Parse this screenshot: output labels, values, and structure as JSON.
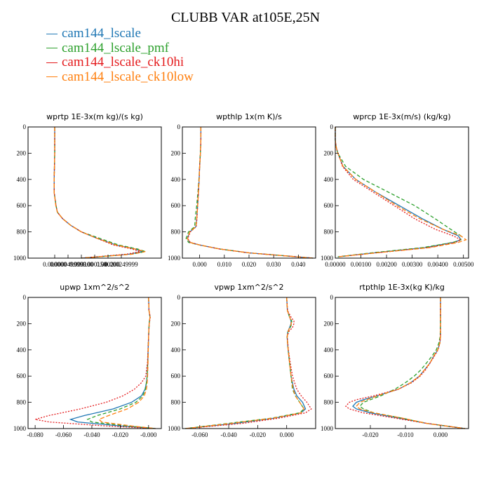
{
  "title": "CLUBB VAR at105E,25N",
  "series_style": [
    {
      "name": "cam144_lscale",
      "color": "#1f77b4",
      "dash": ""
    },
    {
      "name": "cam144_lscale_pmf",
      "color": "#2ca02c",
      "dash": "5,3"
    },
    {
      "name": "cam144_lscale_ck10hi",
      "color": "#e41a1c",
      "dash": "2,2"
    },
    {
      "name": "cam144_lscale_ck10low",
      "color": "#ff7f0e",
      "dash": "6,3"
    }
  ],
  "chart_data": [
    {
      "type": "line",
      "title": "wprtp  1E-3x(m kg)/(s kg)",
      "xlim": [
        -1e-07,
        4e-07
      ],
      "ylim": [
        1000,
        0
      ],
      "yticks": [
        0,
        200,
        400,
        600,
        800,
        1000
      ],
      "xticks": [
        {
          "v": 0.0,
          "label": "0.000000"
        },
        {
          "v": 5e-08,
          "label": "0.0000499999"
        },
        {
          "v": 1e-07,
          "label": "0.000100"
        },
        {
          "v": 1.5e-07,
          "label": "0.000150"
        },
        {
          "v": 2e-07,
          "label": "0.000200"
        },
        {
          "v": 2.5e-07,
          "label": "0.000249999"
        }
      ],
      "y": [
        0,
        100,
        200,
        300,
        400,
        500,
        600,
        650,
        700,
        750,
        800,
        850,
        900,
        930,
        950,
        970,
        1000
      ],
      "series": [
        {
          "name": "cam144_lscale",
          "values": [
            0,
            0,
            0,
            -1e-09,
            -2e-09,
            -2e-09,
            5e-09,
            1e-08,
            3e-08,
            6e-08,
            1e-07,
            1.6e-07,
            2.3e-07,
            3e-07,
            3.3e-07,
            2.8e-07,
            1e-07
          ]
        },
        {
          "name": "cam144_lscale_pmf",
          "values": [
            0,
            0,
            0,
            -1e-09,
            -2e-09,
            -2e-09,
            5e-09,
            1e-08,
            3e-08,
            6e-08,
            1e-07,
            1.7e-07,
            2.4e-07,
            3.1e-07,
            3.4e-07,
            2.9e-07,
            1e-07
          ]
        },
        {
          "name": "cam144_lscale_ck10hi",
          "values": [
            0,
            0,
            0,
            -1e-09,
            -2e-09,
            -2e-09,
            5e-09,
            1e-08,
            3e-08,
            6e-08,
            1e-07,
            1.6e-07,
            2.2e-07,
            2.9e-07,
            3.2e-07,
            2.7e-07,
            1e-07
          ]
        },
        {
          "name": "cam144_lscale_ck10low",
          "values": [
            0,
            0,
            0,
            -1e-09,
            -2e-09,
            -2e-09,
            4e-09,
            1e-08,
            3e-08,
            6e-08,
            1e-07,
            1.6e-07,
            2.3e-07,
            3e-07,
            3.4e-07,
            2.9e-07,
            1e-07
          ]
        }
      ]
    },
    {
      "type": "line",
      "title": "wpthlp  1x(m K)/s",
      "xlim": [
        -0.007,
        0.047
      ],
      "ylim": [
        1000,
        0
      ],
      "yticks": [
        0,
        200,
        400,
        600,
        800,
        1000
      ],
      "xticks": [
        {
          "v": 0.0,
          "label": "0.000"
        },
        {
          "v": 0.01,
          "label": "0.010"
        },
        {
          "v": 0.02,
          "label": "0.020"
        },
        {
          "v": 0.03,
          "label": "0.030"
        },
        {
          "v": 0.04,
          "label": "0.040"
        }
      ],
      "y": [
        0,
        100,
        200,
        300,
        400,
        500,
        600,
        700,
        760,
        800,
        850,
        880,
        900,
        930,
        960,
        1000
      ],
      "series": [
        {
          "name": "cam144_lscale",
          "values": [
            0.0005,
            0.0005,
            0.0003,
            0.0,
            -0.0002,
            -0.0005,
            -0.0008,
            -0.0012,
            -0.0015,
            -0.004,
            -0.005,
            -0.004,
            0.0,
            0.008,
            0.02,
            0.046
          ]
        },
        {
          "name": "cam144_lscale_pmf",
          "values": [
            0.0005,
            0.0005,
            0.0003,
            0.0,
            -0.0003,
            -0.0007,
            -0.0012,
            -0.0018,
            -0.002,
            -0.0045,
            -0.0055,
            -0.0045,
            0.0,
            0.008,
            0.02,
            0.046
          ]
        },
        {
          "name": "cam144_lscale_ck10hi",
          "values": [
            0.0005,
            0.0005,
            0.0003,
            0.0,
            -0.0002,
            -0.0005,
            -0.0008,
            -0.0011,
            -0.0014,
            -0.0038,
            -0.0048,
            -0.0038,
            0.0,
            0.008,
            0.02,
            0.046
          ]
        },
        {
          "name": "cam144_lscale_ck10low",
          "values": [
            0.0005,
            0.0005,
            0.0003,
            0.0,
            -0.0002,
            -0.0005,
            -0.0008,
            -0.0012,
            -0.0015,
            -0.004,
            -0.005,
            -0.004,
            0.0,
            0.008,
            0.02,
            0.046
          ]
        }
      ]
    },
    {
      "type": "line",
      "title": "wprcp  1E-3x(m/s) (kg/kg)",
      "xlim": [
        0,
        0.0052
      ],
      "ylim": [
        1000,
        0
      ],
      "yticks": [
        0,
        200,
        400,
        600,
        800,
        1000
      ],
      "xticks": [
        {
          "v": 0.0,
          "label": "0.00000"
        },
        {
          "v": 0.001,
          "label": "0.00100"
        },
        {
          "v": 0.002,
          "label": "0.00200"
        },
        {
          "v": 0.003,
          "label": "0.00300"
        },
        {
          "v": 0.004,
          "label": "0.00400"
        },
        {
          "v": 0.005,
          "label": "0.00500"
        }
      ],
      "y": [
        0,
        100,
        150,
        200,
        250,
        300,
        400,
        500,
        600,
        700,
        780,
        830,
        860,
        880,
        920,
        960,
        990
      ],
      "series": [
        {
          "name": "cam144_lscale",
          "values": [
            0,
            0,
            3e-05,
            0.0001,
            0.0002,
            0.0003,
            0.0008,
            0.0016,
            0.0025,
            0.0034,
            0.0042,
            0.0048,
            0.0049,
            0.0046,
            0.0035,
            0.0015,
            0.0001
          ]
        },
        {
          "name": "cam144_lscale_pmf",
          "values": [
            0,
            0,
            3e-05,
            0.0001,
            0.00025,
            0.0004,
            0.0011,
            0.0021,
            0.0031,
            0.0039,
            0.0045,
            0.0049,
            0.0049,
            0.0046,
            0.0034,
            0.0014,
            0.0001
          ]
        },
        {
          "name": "cam144_lscale_ck10hi",
          "values": [
            0,
            0,
            3e-05,
            0.0001,
            0.0002,
            0.00028,
            0.0007,
            0.0015,
            0.0023,
            0.0031,
            0.0039,
            0.0046,
            0.0049,
            0.0047,
            0.0036,
            0.0016,
            0.0001
          ]
        },
        {
          "name": "cam144_lscale_ck10low",
          "values": [
            0,
            0,
            3e-05,
            0.0001,
            0.0002,
            0.0003,
            0.0008,
            0.0016,
            0.0024,
            0.0033,
            0.0042,
            0.0049,
            0.0051,
            0.0048,
            0.0037,
            0.0016,
            0.0001
          ]
        }
      ]
    },
    {
      "type": "line",
      "title": "upwp  1xm^2/s^2",
      "xlim": [
        -0.085,
        0.009
      ],
      "ylim": [
        1000,
        0
      ],
      "yticks": [
        0,
        200,
        400,
        600,
        800,
        1000
      ],
      "xticks": [
        {
          "v": -0.08,
          "label": "-0.080"
        },
        {
          "v": -0.06,
          "label": "-0.060"
        },
        {
          "v": -0.04,
          "label": "-0.040"
        },
        {
          "v": -0.02,
          "label": "-0.020"
        },
        {
          "v": 0.0,
          "label": "-0.000"
        }
      ],
      "y": [
        0,
        100,
        150,
        200,
        300,
        400,
        500,
        600,
        650,
        700,
        750,
        800,
        850,
        900,
        930,
        950,
        980,
        1000
      ],
      "series": [
        {
          "name": "cam144_lscale",
          "values": [
            0,
            0.0003,
            0.001,
            0.0004,
            0.0,
            -0.0003,
            -0.0006,
            -0.001,
            -0.0015,
            -0.0025,
            -0.005,
            -0.012,
            -0.025,
            -0.045,
            -0.055,
            -0.05,
            -0.02,
            0.005
          ]
        },
        {
          "name": "cam144_lscale_pmf",
          "values": [
            0,
            0.0003,
            0.001,
            0.0004,
            0.0,
            -0.0003,
            -0.0006,
            -0.001,
            -0.0015,
            -0.0022,
            -0.004,
            -0.009,
            -0.02,
            -0.036,
            -0.043,
            -0.04,
            -0.015,
            0.005
          ]
        },
        {
          "name": "cam144_lscale_ck10hi",
          "values": [
            0,
            0.0003,
            0.0012,
            0.0005,
            0.0,
            -0.0004,
            -0.0008,
            -0.002,
            -0.005,
            -0.01,
            -0.018,
            -0.03,
            -0.048,
            -0.07,
            -0.08,
            -0.07,
            -0.03,
            0.005
          ]
        },
        {
          "name": "cam144_lscale_ck10low",
          "values": [
            0,
            0.0003,
            0.001,
            0.0004,
            0.0,
            -0.0002,
            -0.0004,
            -0.0007,
            -0.001,
            -0.0015,
            -0.003,
            -0.007,
            -0.015,
            -0.028,
            -0.035,
            -0.033,
            -0.012,
            0.005
          ]
        }
      ]
    },
    {
      "type": "line",
      "title": "vpwp  1xm^2/s^2",
      "xlim": [
        -0.072,
        0.02
      ],
      "ylim": [
        1000,
        0
      ],
      "yticks": [
        0,
        200,
        400,
        600,
        800,
        1000
      ],
      "xticks": [
        {
          "v": -0.06,
          "label": "-0.060"
        },
        {
          "v": -0.04,
          "label": "-0.040"
        },
        {
          "v": -0.02,
          "label": "-0.020"
        },
        {
          "v": 0.0,
          "label": "0.000"
        }
      ],
      "y": [
        0,
        100,
        150,
        180,
        200,
        230,
        260,
        300,
        400,
        500,
        600,
        700,
        750,
        800,
        850,
        880,
        920,
        960,
        1000
      ],
      "series": [
        {
          "name": "cam144_lscale",
          "values": [
            0,
            0.0005,
            0.002,
            0.003,
            0.003,
            0.002,
            0.0008,
            0.0003,
            0.001,
            0.002,
            0.003,
            0.005,
            0.007,
            0.011,
            0.013,
            0.01,
            -0.008,
            -0.035,
            -0.07
          ]
        },
        {
          "name": "cam144_lscale_pmf",
          "values": [
            0,
            0.0005,
            0.002,
            0.0035,
            0.0035,
            0.0025,
            0.001,
            0.0003,
            0.001,
            0.002,
            0.003,
            0.004,
            0.006,
            0.009,
            0.012,
            0.009,
            -0.01,
            -0.04,
            -0.07
          ]
        },
        {
          "name": "cam144_lscale_ck10hi",
          "values": [
            0,
            0.0006,
            0.003,
            0.005,
            0.005,
            0.004,
            0.0015,
            0.0004,
            0.0012,
            0.0025,
            0.004,
            0.007,
            0.01,
            0.014,
            0.017,
            0.013,
            -0.005,
            -0.03,
            -0.07
          ]
        },
        {
          "name": "cam144_lscale_ck10low",
          "values": [
            0,
            0.0005,
            0.002,
            0.0032,
            0.0032,
            0.0022,
            0.0009,
            0.0003,
            0.001,
            0.002,
            0.003,
            0.0045,
            0.006,
            0.009,
            0.012,
            0.01,
            -0.009,
            -0.038,
            -0.07
          ]
        }
      ]
    },
    {
      "type": "line",
      "title": "rtpthlp  1E-3x(kg K)/kg",
      "xlim": [
        -0.03,
        0.008
      ],
      "ylim": [
        1000,
        0
      ],
      "yticks": [
        0,
        200,
        400,
        600,
        800,
        1000
      ],
      "xticks": [
        {
          "v": -0.02,
          "label": "-0.020"
        },
        {
          "v": -0.01,
          "label": "-0.010"
        },
        {
          "v": 0.0,
          "label": "0.000"
        }
      ],
      "y": [
        0,
        100,
        200,
        300,
        350,
        400,
        450,
        500,
        550,
        600,
        650,
        700,
        750,
        780,
        800,
        830,
        850,
        880,
        920,
        960,
        1000
      ],
      "series": [
        {
          "name": "cam144_lscale",
          "values": [
            0,
            0,
            0,
            0,
            -0.0002,
            -0.0008,
            -0.002,
            -0.003,
            -0.0045,
            -0.006,
            -0.0085,
            -0.012,
            -0.018,
            -0.022,
            -0.024,
            -0.025,
            -0.024,
            -0.02,
            -0.012,
            -0.004,
            0.007
          ]
        },
        {
          "name": "cam144_lscale_pmf",
          "values": [
            0,
            0,
            0,
            -0.0001,
            -0.0005,
            -0.0012,
            -0.0025,
            -0.004,
            -0.0055,
            -0.0075,
            -0.01,
            -0.013,
            -0.017,
            -0.02,
            -0.022,
            -0.023,
            -0.022,
            -0.019,
            -0.011,
            -0.004,
            0.007
          ]
        },
        {
          "name": "cam144_lscale_ck10hi",
          "values": [
            0,
            0,
            0,
            0,
            -0.0002,
            -0.0007,
            -0.0018,
            -0.003,
            -0.0042,
            -0.0058,
            -0.0082,
            -0.012,
            -0.019,
            -0.024,
            -0.026,
            -0.027,
            -0.026,
            -0.022,
            -0.013,
            -0.004,
            0.007
          ]
        },
        {
          "name": "cam144_lscale_ck10low",
          "values": [
            0,
            0,
            0,
            0,
            -0.0002,
            -0.0008,
            -0.002,
            -0.003,
            -0.0045,
            -0.006,
            -0.0085,
            -0.012,
            -0.018,
            -0.021,
            -0.023,
            -0.024,
            -0.023,
            -0.019,
            -0.011,
            -0.004,
            0.007
          ]
        }
      ]
    }
  ]
}
